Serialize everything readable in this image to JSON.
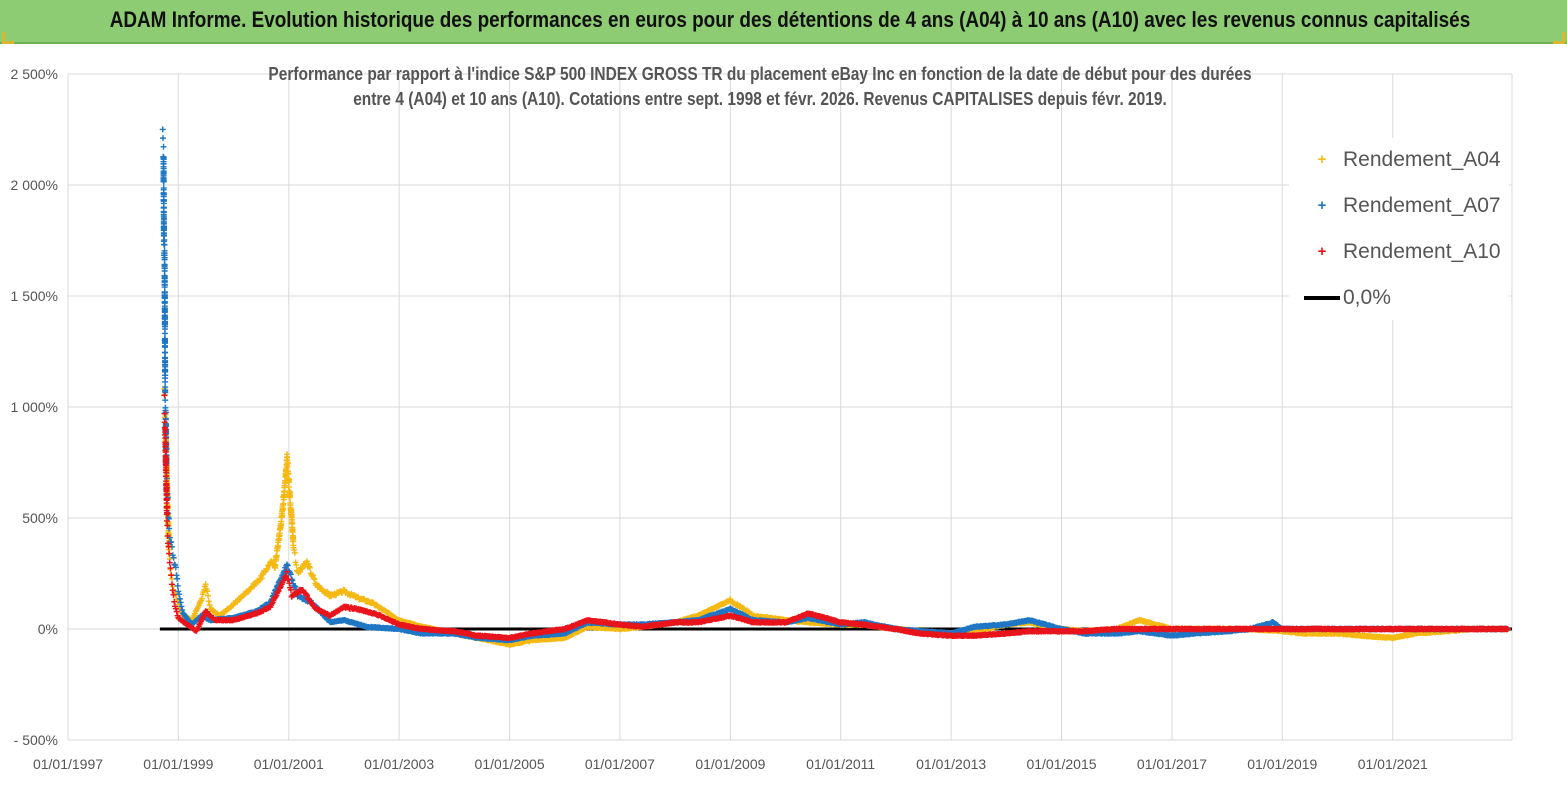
{
  "header": {
    "title": "ADAM Informe. Evolution historique des performances en euros pour des détentions de 4 ans (A04) à 10 ans (A10) avec les revenus connus capitalisés"
  },
  "colors": {
    "banner": "#8dcc72",
    "A04": "#f5b914",
    "A07": "#1f77c4",
    "A10": "#e8141c",
    "zero": "#000000",
    "grid": "#d9d9d9"
  },
  "chart_data": {
    "type": "scatter",
    "title_lines": [
      "Performance par rapport à l'indice S&P 500 INDEX GROSS TR  du placement eBay Inc en fonction de la date de début pour des durées",
      "entre 4 (A04) et 10 ans (A10). Cotations entre sept. 1998 et févr. 2026. Revenus CAPITALISES depuis févr. 2019."
    ],
    "xlabel": "",
    "ylabel": "",
    "x_range": [
      "1997-01-01",
      "2023-03-01"
    ],
    "y_range": [
      -500,
      2500
    ],
    "y_ticks": [
      -500,
      0,
      500,
      1000,
      1500,
      2000,
      2500
    ],
    "y_tick_labels": [
      "- 500%",
      "0%",
      "500%",
      "1 000%",
      "1 500%",
      "2 000%",
      "2 500%"
    ],
    "x_tick_labels": [
      "01/01/1997",
      "01/01/1999",
      "01/01/2001",
      "01/01/2003",
      "01/01/2005",
      "01/01/2007",
      "01/01/2009",
      "01/01/2011",
      "01/01/2013",
      "01/01/2015",
      "01/01/2017",
      "01/01/2019",
      "01/01/2021"
    ],
    "grid": true,
    "legend_position": "top-right",
    "marker": "+",
    "series": [
      {
        "name": "Rendement_A04",
        "key": "A04",
        "points": [
          [
            "1998-10-01",
            1050
          ],
          [
            "1998-10-10",
            900
          ],
          [
            "1998-10-20",
            600
          ],
          [
            "1998-11-01",
            350
          ],
          [
            "1998-11-15",
            250
          ],
          [
            "1998-12-01",
            180
          ],
          [
            "1999-01-01",
            120
          ],
          [
            "1999-02-01",
            60
          ],
          [
            "1999-04-01",
            40
          ],
          [
            "1999-06-01",
            130
          ],
          [
            "1999-07-01",
            200
          ],
          [
            "1999-08-01",
            90
          ],
          [
            "1999-10-01",
            60
          ],
          [
            "2000-01-01",
            110
          ],
          [
            "2000-04-01",
            170
          ],
          [
            "2000-07-01",
            230
          ],
          [
            "2000-09-01",
            300
          ],
          [
            "2000-10-01",
            280
          ],
          [
            "2000-11-15",
            500
          ],
          [
            "2000-12-20",
            760
          ],
          [
            "2001-01-15",
            550
          ],
          [
            "2001-02-01",
            380
          ],
          [
            "2001-03-01",
            250
          ],
          [
            "2001-05-01",
            300
          ],
          [
            "2001-07-01",
            200
          ],
          [
            "2001-10-01",
            150
          ],
          [
            "2002-01-01",
            170
          ],
          [
            "2002-04-01",
            140
          ],
          [
            "2002-07-01",
            120
          ],
          [
            "2002-10-01",
            80
          ],
          [
            "2003-01-01",
            40
          ],
          [
            "2003-06-01",
            10
          ],
          [
            "2004-01-01",
            -20
          ],
          [
            "2004-06-01",
            -40
          ],
          [
            "2005-01-01",
            -70
          ],
          [
            "2005-06-01",
            -50
          ],
          [
            "2006-01-01",
            -40
          ],
          [
            "2006-06-01",
            10
          ],
          [
            "2007-01-01",
            0
          ],
          [
            "2007-06-01",
            10
          ],
          [
            "2008-01-01",
            30
          ],
          [
            "2008-06-01",
            60
          ],
          [
            "2009-01-01",
            130
          ],
          [
            "2009-06-01",
            60
          ],
          [
            "2010-01-01",
            40
          ],
          [
            "2010-06-01",
            30
          ],
          [
            "2011-01-01",
            20
          ],
          [
            "2011-06-01",
            20
          ],
          [
            "2012-01-01",
            0
          ],
          [
            "2012-06-01",
            -10
          ],
          [
            "2013-01-01",
            -20
          ],
          [
            "2013-06-01",
            -10
          ],
          [
            "2014-01-01",
            20
          ],
          [
            "2014-06-01",
            30
          ],
          [
            "2015-01-01",
            0
          ],
          [
            "2015-06-01",
            -10
          ],
          [
            "2016-01-01",
            0
          ],
          [
            "2016-06-01",
            40
          ],
          [
            "2017-01-01",
            0
          ],
          [
            "2017-06-01",
            0
          ],
          [
            "2018-01-01",
            0
          ],
          [
            "2018-06-01",
            0
          ],
          [
            "2019-01-01",
            -10
          ],
          [
            "2019-06-01",
            -20
          ],
          [
            "2020-01-01",
            -20
          ],
          [
            "2020-06-01",
            -30
          ],
          [
            "2021-01-01",
            -40
          ],
          [
            "2021-06-01",
            -20
          ],
          [
            "2022-01-01",
            -10
          ],
          [
            "2022-06-01",
            0
          ],
          [
            "2023-02-01",
            0
          ]
        ]
      },
      {
        "name": "Rendement_A07",
        "key": "A07",
        "points": [
          [
            "1998-09-20",
            2170
          ],
          [
            "1998-09-25",
            2120
          ],
          [
            "1998-09-28",
            1750
          ],
          [
            "1998-10-02",
            1690
          ],
          [
            "1998-10-06",
            1090
          ],
          [
            "1998-10-10",
            950
          ],
          [
            "1998-10-15",
            720
          ],
          [
            "1998-10-22",
            600
          ],
          [
            "1998-11-01",
            450
          ],
          [
            "1998-11-15",
            380
          ],
          [
            "1998-12-01",
            320
          ],
          [
            "1998-12-20",
            250
          ],
          [
            "1999-01-01",
            170
          ],
          [
            "1999-02-01",
            70
          ],
          [
            "1999-04-01",
            20
          ],
          [
            "1999-06-01",
            60
          ],
          [
            "1999-08-01",
            40
          ],
          [
            "2000-01-01",
            50
          ],
          [
            "2000-06-01",
            80
          ],
          [
            "2000-09-01",
            120
          ],
          [
            "2000-12-20",
            290
          ],
          [
            "2001-03-01",
            150
          ],
          [
            "2001-06-01",
            120
          ],
          [
            "2001-10-01",
            30
          ],
          [
            "2002-01-01",
            40
          ],
          [
            "2002-06-01",
            10
          ],
          [
            "2003-01-01",
            0
          ],
          [
            "2003-06-01",
            -20
          ],
          [
            "2004-01-01",
            -20
          ],
          [
            "2004-06-01",
            -40
          ],
          [
            "2005-01-01",
            -50
          ],
          [
            "2005-06-01",
            -30
          ],
          [
            "2006-01-01",
            -20
          ],
          [
            "2006-06-01",
            30
          ],
          [
            "2007-01-01",
            20
          ],
          [
            "2007-06-01",
            20
          ],
          [
            "2008-01-01",
            30
          ],
          [
            "2008-06-01",
            40
          ],
          [
            "2009-01-01",
            90
          ],
          [
            "2009-06-01",
            40
          ],
          [
            "2010-01-01",
            30
          ],
          [
            "2010-06-01",
            50
          ],
          [
            "2011-01-01",
            20
          ],
          [
            "2011-06-01",
            30
          ],
          [
            "2012-01-01",
            0
          ],
          [
            "2012-06-01",
            -10
          ],
          [
            "2013-01-01",
            -20
          ],
          [
            "2013-06-01",
            10
          ],
          [
            "2014-01-01",
            20
          ],
          [
            "2014-06-01",
            40
          ],
          [
            "2015-01-01",
            0
          ],
          [
            "2015-06-01",
            -20
          ],
          [
            "2016-01-01",
            -20
          ],
          [
            "2016-06-01",
            -10
          ],
          [
            "2017-01-01",
            -30
          ],
          [
            "2017-06-01",
            -20
          ],
          [
            "2018-01-01",
            -10
          ],
          [
            "2018-06-01",
            0
          ],
          [
            "2018-11-01",
            30
          ],
          [
            "2019-01-01",
            0
          ],
          [
            "2020-01-01",
            0
          ],
          [
            "2021-01-01",
            0
          ],
          [
            "2022-01-01",
            0
          ],
          [
            "2023-02-01",
            0
          ]
        ]
      },
      {
        "name": "Rendement_A10",
        "key": "A10",
        "points": [
          [
            "1998-10-01",
            1020
          ],
          [
            "1998-10-06",
            880
          ],
          [
            "1998-10-12",
            710
          ],
          [
            "1998-10-18",
            500
          ],
          [
            "1998-10-25",
            400
          ],
          [
            "1998-11-05",
            300
          ],
          [
            "1998-11-20",
            200
          ],
          [
            "1998-12-05",
            120
          ],
          [
            "1999-01-01",
            50
          ],
          [
            "1999-03-01",
            20
          ],
          [
            "1999-05-01",
            -10
          ],
          [
            "1999-07-01",
            80
          ],
          [
            "1999-09-01",
            40
          ],
          [
            "2000-01-01",
            40
          ],
          [
            "2000-06-01",
            70
          ],
          [
            "2000-09-01",
            100
          ],
          [
            "2000-12-20",
            250
          ],
          [
            "2001-01-20",
            150
          ],
          [
            "2001-04-01",
            180
          ],
          [
            "2001-07-01",
            90
          ],
          [
            "2001-10-01",
            60
          ],
          [
            "2002-01-01",
            100
          ],
          [
            "2002-06-01",
            80
          ],
          [
            "2002-09-01",
            60
          ],
          [
            "2003-01-01",
            20
          ],
          [
            "2003-06-01",
            0
          ],
          [
            "2004-01-01",
            -10
          ],
          [
            "2004-06-01",
            -30
          ],
          [
            "2005-01-01",
            -40
          ],
          [
            "2005-06-01",
            -20
          ],
          [
            "2006-01-01",
            0
          ],
          [
            "2006-06-01",
            40
          ],
          [
            "2007-01-01",
            20
          ],
          [
            "2007-06-01",
            10
          ],
          [
            "2008-01-01",
            30
          ],
          [
            "2008-06-01",
            30
          ],
          [
            "2009-01-01",
            60
          ],
          [
            "2009-06-01",
            30
          ],
          [
            "2010-01-01",
            30
          ],
          [
            "2010-06-01",
            70
          ],
          [
            "2011-01-01",
            30
          ],
          [
            "2011-06-01",
            20
          ],
          [
            "2012-01-01",
            0
          ],
          [
            "2012-06-01",
            -20
          ],
          [
            "2013-01-01",
            -30
          ],
          [
            "2013-06-01",
            -30
          ],
          [
            "2014-01-01",
            -20
          ],
          [
            "2014-06-01",
            -10
          ],
          [
            "2015-01-01",
            -10
          ],
          [
            "2015-06-01",
            -10
          ],
          [
            "2016-01-01",
            0
          ],
          [
            "2017-01-01",
            0
          ],
          [
            "2018-01-01",
            0
          ],
          [
            "2019-01-01",
            0
          ],
          [
            "2020-01-01",
            0
          ],
          [
            "2021-01-01",
            0
          ],
          [
            "2022-01-01",
            0
          ],
          [
            "2023-02-01",
            0
          ]
        ]
      }
    ],
    "reference_line": {
      "name": "0,0%",
      "key": "zero",
      "y": 0,
      "x_from": "1998-09-01",
      "x_to": "2023-03-01"
    }
  }
}
